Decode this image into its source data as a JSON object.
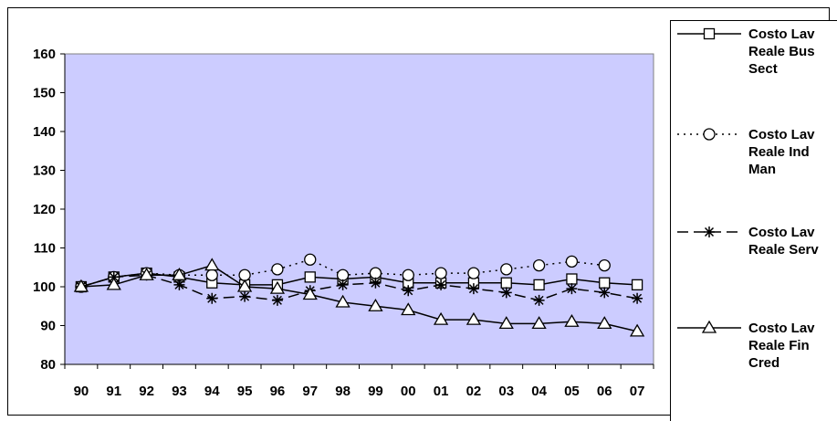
{
  "chart_data": {
    "type": "line",
    "title": "",
    "xlabel": "",
    "ylabel": "",
    "ylim": [
      80,
      160
    ],
    "yticks": [
      80,
      90,
      100,
      110,
      120,
      130,
      140,
      150,
      160
    ],
    "categories": [
      "90",
      "91",
      "92",
      "93",
      "94",
      "95",
      "96",
      "97",
      "98",
      "99",
      "00",
      "01",
      "02",
      "03",
      "04",
      "05",
      "06",
      "07"
    ],
    "grid": false,
    "legend_position": "right",
    "plot_background": "#CCCCFF",
    "series": [
      {
        "name": "Costo Lav Reale Bus Sect",
        "legend_lines": [
          "Costo Lav",
          "Reale Bus",
          "Sect"
        ],
        "marker": "square",
        "dash": "solid",
        "values": [
          100,
          102.5,
          103.5,
          102.5,
          101,
          100.5,
          100.5,
          102.5,
          102,
          102.5,
          101,
          101,
          101,
          101,
          100.5,
          102,
          101,
          100.5
        ]
      },
      {
        "name": "Costo Lav Reale Ind Man",
        "legend_lines": [
          "Costo Lav",
          "Reale Ind",
          "Man"
        ],
        "marker": "circle",
        "dash": "dotted",
        "values": [
          100,
          102.5,
          103.5,
          103,
          103,
          103,
          104.5,
          107,
          103,
          103.5,
          103,
          103.5,
          103.5,
          104.5,
          105.5,
          106.5,
          105.5,
          null
        ]
      },
      {
        "name": "Costo Lav Reale Serv",
        "legend_lines": [
          "Costo Lav",
          "Reale Serv"
        ],
        "marker": "star",
        "dash": "dashed",
        "values": [
          100,
          102.5,
          103,
          100.5,
          97,
          97.5,
          96.5,
          99,
          100.5,
          101,
          99,
          100.5,
          99.5,
          98.5,
          96.5,
          99.5,
          98.5,
          97
        ]
      },
      {
        "name": "Costo Lav Reale Fin Cred",
        "legend_lines": [
          "Costo Lav",
          "Reale Fin",
          "Cred"
        ],
        "marker": "triangle",
        "dash": "solid",
        "values": [
          100,
          100.5,
          103,
          103,
          105.5,
          100,
          99.5,
          98,
          96,
          95,
          94,
          91.5,
          91.5,
          90.5,
          90.5,
          91,
          90.5,
          88.5
        ]
      }
    ]
  }
}
